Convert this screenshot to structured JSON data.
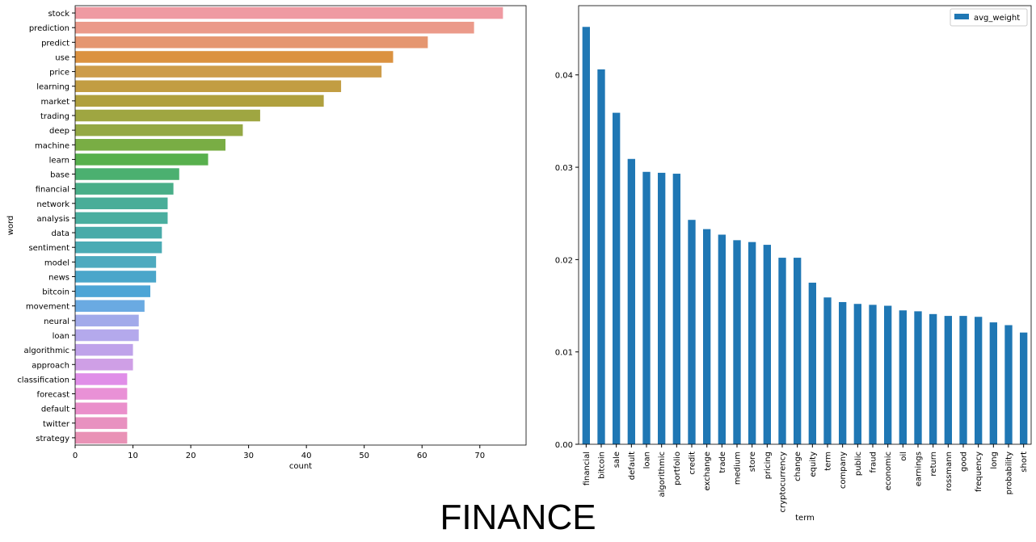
{
  "suptitle": "FINANCE",
  "chart_data": [
    {
      "type": "bar",
      "orientation": "horizontal",
      "xlabel": "count",
      "ylabel": "word",
      "xlim": [
        0,
        78
      ],
      "xticks": [
        0,
        10,
        20,
        30,
        40,
        50,
        60,
        70
      ],
      "grid": false,
      "categories": [
        "stock",
        "prediction",
        "predict",
        "use",
        "price",
        "learning",
        "market",
        "trading",
        "deep",
        "machine",
        "learn",
        "base",
        "financial",
        "network",
        "analysis",
        "data",
        "sentiment",
        "model",
        "news",
        "bitcoin",
        "movement",
        "neural",
        "loan",
        "algorithmic",
        "approach",
        "classification",
        "forecast",
        "default",
        "twitter",
        "strategy"
      ],
      "values": [
        74,
        69,
        61,
        55,
        53,
        46,
        43,
        32,
        29,
        26,
        23,
        18,
        17,
        16,
        16,
        15,
        15,
        14,
        14,
        13,
        12,
        11,
        11,
        10,
        10,
        9,
        9,
        9,
        9,
        9
      ],
      "colors": [
        "#ef9aa2",
        "#eb9a8a",
        "#e59670",
        "#db9240",
        "#cd9c4a",
        "#c29d42",
        "#b0a03e",
        "#9fa641",
        "#94a844",
        "#79ad44",
        "#58b04d",
        "#4bb070",
        "#49ae88",
        "#49ad98",
        "#4aae9f",
        "#49aba9",
        "#4aabb4",
        "#4daabf",
        "#4aa6ca",
        "#4ca5d6",
        "#6aaae2",
        "#a2aaea",
        "#b4a9ec",
        "#bfa2ea",
        "#cf9fe6",
        "#e08ee8",
        "#e991d6",
        "#ea8fcb",
        "#e891c0",
        "#e992b6"
      ]
    },
    {
      "type": "bar",
      "orientation": "vertical",
      "xlabel": "term",
      "ylabel": "",
      "ylim": [
        0,
        0.0475
      ],
      "yticks": [
        "0.00",
        "0.01",
        "0.02",
        "0.03",
        "0.04"
      ],
      "legend": {
        "position": "top-right",
        "entries": [
          "avg_weight"
        ]
      },
      "grid": false,
      "color": "#1f77b4",
      "series": [
        {
          "name": "avg_weight",
          "categories": [
            "financial",
            "bitcoin",
            "sale",
            "default",
            "loan",
            "algorithmic",
            "portfolio",
            "credit",
            "exchange",
            "trade",
            "medium",
            "store",
            "pricing",
            "cryptocurrency",
            "change",
            "equity",
            "term",
            "company",
            "public",
            "fraud",
            "economic",
            "oil",
            "earnings",
            "return",
            "rossmann",
            "good",
            "frequency",
            "long",
            "probability",
            "short"
          ],
          "values": [
            0.0452,
            0.0406,
            0.0359,
            0.0309,
            0.0295,
            0.0294,
            0.0293,
            0.0243,
            0.0233,
            0.0227,
            0.0221,
            0.0219,
            0.0216,
            0.0202,
            0.0202,
            0.0175,
            0.0159,
            0.0154,
            0.0152,
            0.0151,
            0.015,
            0.0145,
            0.0144,
            0.0141,
            0.0139,
            0.0139,
            0.0138,
            0.0132,
            0.0129,
            0.0121
          ]
        }
      ]
    }
  ]
}
